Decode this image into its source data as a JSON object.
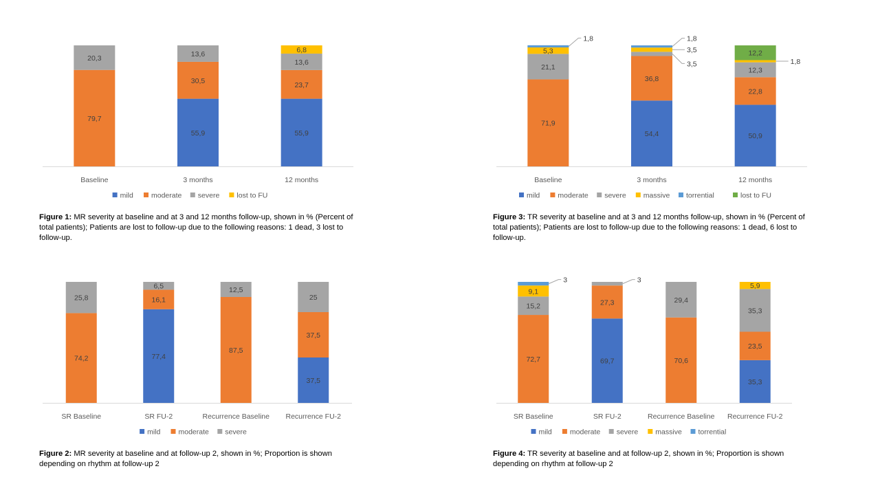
{
  "colors": {
    "mild": "#4472C4",
    "moderate": "#ED7D31",
    "severe": "#A5A5A5",
    "massive": "#FFC000",
    "lost_to_fu": "#FFC000",
    "torrential": "#5B9BD5",
    "lost_to_fu_tr": "#70AD47",
    "axis": "#D9D9D9",
    "label": "#404040",
    "tick": "#595959"
  },
  "chart_data": [
    {
      "type": "bar",
      "stacked": true,
      "categories": [
        "Baseline",
        "3 months",
        "12 months"
      ],
      "series": [
        {
          "name": "mild",
          "values": [
            0,
            55.9,
            55.9
          ]
        },
        {
          "name": "moderate",
          "values": [
            79.7,
            30.5,
            23.7
          ]
        },
        {
          "name": "severe",
          "values": [
            20.3,
            13.6,
            13.6
          ]
        },
        {
          "name": "lost to FU",
          "values": [
            0,
            0,
            6.8
          ]
        }
      ],
      "labels": [
        [
          "",
          "79,7",
          "20,3",
          ""
        ],
        [
          "55,9",
          "30,5",
          "13,6",
          ""
        ],
        [
          "55,9",
          "23,7",
          "13,6",
          "6,8"
        ]
      ],
      "callouts": [],
      "ylim": [
        0,
        100
      ],
      "legend": "bottom",
      "caption_bold": "Figure 1:",
      "caption_text": " MR severity at baseline and at 3 and 12 months follow-up, shown in % (Percent of total patients); Patients are lost to follow-up due to the following reasons: 1 dead, 3 lost to follow-up."
    },
    {
      "type": "bar",
      "stacked": true,
      "categories": [
        "Baseline",
        "3 months",
        "12 months"
      ],
      "series": [
        {
          "name": "mild",
          "values": [
            0,
            54.4,
            50.9
          ]
        },
        {
          "name": "moderate",
          "values": [
            71.9,
            36.8,
            22.8
          ]
        },
        {
          "name": "severe",
          "values": [
            21.1,
            3.5,
            12.3
          ]
        },
        {
          "name": "massive",
          "values": [
            5.3,
            3.5,
            1.8
          ]
        },
        {
          "name": "torrential",
          "values": [
            1.8,
            1.8,
            0
          ]
        },
        {
          "name": "lost to FU",
          "values": [
            0,
            0,
            12.2
          ]
        }
      ],
      "labels": [
        [
          "",
          "71,9",
          "21,1",
          "5,3",
          "",
          ""
        ],
        [
          "54,4",
          "36,8",
          "",
          "",
          "",
          ""
        ],
        [
          "50,9",
          "22,8",
          "12,3",
          "",
          "",
          "12,2"
        ]
      ],
      "callouts": [
        {
          "category": 0,
          "series": 4,
          "text": "1,8",
          "dy": -12
        },
        {
          "category": 1,
          "series": 4,
          "text": "1,8",
          "dy": -12
        },
        {
          "category": 1,
          "series": 3,
          "text": "3,5",
          "dy": 0
        },
        {
          "category": 1,
          "series": 2,
          "text": "3,5",
          "dy": 14
        },
        {
          "category": 2,
          "series": 3,
          "text": "1,8",
          "dy": 0
        }
      ],
      "ylim": [
        0,
        100
      ],
      "legend": "bottom",
      "caption_bold": "Figure 3:",
      "caption_text": " TR severity at baseline and at 3 and 12 months follow-up, shown in % (Percent of total patients); Patients are lost to follow-up due to the following reasons: 1 dead, 6 lost to follow-up."
    },
    {
      "type": "bar",
      "stacked": true,
      "categories": [
        "SR Baseline",
        "SR FU-2",
        "Recurrence Baseline",
        "Recurrence FU-2"
      ],
      "series": [
        {
          "name": "mild",
          "values": [
            0,
            77.4,
            0,
            37.5
          ]
        },
        {
          "name": "moderate",
          "values": [
            74.2,
            16.1,
            87.5,
            37.5
          ]
        },
        {
          "name": "severe",
          "values": [
            25.8,
            6.5,
            12.5,
            25
          ]
        }
      ],
      "labels": [
        [
          "",
          "74,2",
          "25,8"
        ],
        [
          "77,4",
          "16,1",
          "6,5"
        ],
        [
          "",
          "87,5",
          "12,5"
        ],
        [
          "37,5",
          "37,5",
          "25"
        ]
      ],
      "callouts": [],
      "ylim": [
        0,
        100
      ],
      "legend": "bottom",
      "caption_bold": "Figure 2:",
      "caption_text": " MR severity at baseline and at follow-up 2, shown in %; Proportion is shown depending on rhythm at follow-up 2"
    },
    {
      "type": "bar",
      "stacked": true,
      "categories": [
        "SR Baseline",
        "SR FU-2",
        "Recurrence Baseline",
        "Recurrence FU-2"
      ],
      "series": [
        {
          "name": "mild",
          "values": [
            0,
            69.7,
            0,
            35.3
          ]
        },
        {
          "name": "moderate",
          "values": [
            72.7,
            27.3,
            70.6,
            23.5
          ]
        },
        {
          "name": "severe",
          "values": [
            15.2,
            3,
            29.4,
            35.3
          ]
        },
        {
          "name": "massive",
          "values": [
            9.1,
            0,
            0,
            5.9
          ]
        },
        {
          "name": "torrential",
          "values": [
            3,
            0,
            0,
            0
          ]
        }
      ],
      "labels": [
        [
          "",
          "72,7",
          "15,2",
          "9,1",
          ""
        ],
        [
          "69,7",
          "27,3",
          "",
          "",
          ""
        ],
        [
          "",
          "70,6",
          "29,4",
          "",
          ""
        ],
        [
          "35,3",
          "23,5",
          "35,3",
          "5,9",
          ""
        ]
      ],
      "callouts": [
        {
          "category": 0,
          "series": 4,
          "text": "3",
          "dy": -6
        },
        {
          "category": 1,
          "series": 2,
          "text": "3",
          "dy": -6
        }
      ],
      "ylim": [
        0,
        100
      ],
      "legend": "bottom",
      "caption_bold": "Figure 4:",
      "caption_text": " TR severity at baseline and at follow-up 2, shown in %; Proportion is shown depending on rhythm at follow-up 2"
    }
  ]
}
